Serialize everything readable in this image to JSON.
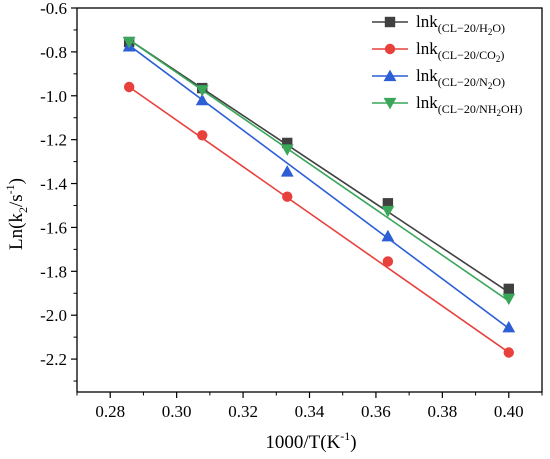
{
  "chart_data": {
    "type": "line",
    "xlabel": "1000/T(K",
    "xlabel_sup": "-1",
    "xlabel_tail": ")",
    "ylabel": "Ln(k",
    "ylabel_sub": "2",
    "ylabel_mid": "/s",
    "ylabel_sup": "-1",
    "ylabel_tail": ")",
    "xlim": [
      0.27,
      0.41
    ],
    "ylim": [
      -2.35,
      -0.6
    ],
    "x_ticks": [
      0.28,
      0.3,
      0.32,
      0.34,
      0.36,
      0.38,
      0.4
    ],
    "x_tick_labels": [
      "0.28",
      "0.30",
      "0.32",
      "0.34",
      "0.36",
      "0.38",
      "0.40"
    ],
    "y_ticks": [
      -0.6,
      -0.8,
      -1.0,
      -1.2,
      -1.4,
      -1.6,
      -1.8,
      -2.0,
      -2.2
    ],
    "y_tick_labels": [
      "-0.6",
      "-0.8",
      "-1.0",
      "-1.2",
      "-1.4",
      "-1.6",
      "-1.8",
      "-2.0",
      "-2.2"
    ],
    "grid": false,
    "legend_position": "top-right",
    "series": [
      {
        "name": "lnk",
        "name_sub": "(CL−20/H2O)",
        "name_sub_parts": [
          "(CL−20/H",
          "2",
          "O)"
        ],
        "color": "#404040",
        "marker": "square",
        "x": [
          0.2857,
          0.3077,
          0.3333,
          0.3636,
          0.4
        ],
        "y": [
          -0.755,
          -0.965,
          -1.215,
          -1.49,
          -1.88
        ],
        "fit": [
          -0.745,
          -1.895
        ]
      },
      {
        "name": "lnk",
        "name_sub": "(CL−20/CO2)",
        "name_sub_parts": [
          "(CL−20/CO",
          "2",
          ")"
        ],
        "color": "#e8413c",
        "marker": "circle",
        "x": [
          0.2857,
          0.3077,
          0.3333,
          0.3636,
          0.4
        ],
        "y": [
          -0.96,
          -1.18,
          -1.46,
          -1.755,
          -2.17
        ],
        "fit": [
          -0.96,
          -2.17
        ]
      },
      {
        "name": "lnk",
        "name_sub": "(CL−20/N2O)",
        "name_sub_parts": [
          "(CL−20/N",
          "2",
          "O)"
        ],
        "color": "#2c5fd6",
        "marker": "triangle-up",
        "x": [
          0.2857,
          0.3077,
          0.3333,
          0.3636,
          0.4
        ],
        "y": [
          -0.775,
          -1.02,
          -1.345,
          -1.64,
          -2.055
        ],
        "fit": [
          -0.77,
          -2.06
        ]
      },
      {
        "name": "lnk",
        "name_sub": "(CL−20/NH2OH)",
        "name_sub_parts": [
          "(CL−20/NH",
          "2",
          "OH)"
        ],
        "color": "#3aa65a",
        "marker": "triangle-down",
        "x": [
          0.2857,
          0.3077,
          0.3333,
          0.3636,
          0.4
        ],
        "y": [
          -0.755,
          -0.975,
          -1.245,
          -1.525,
          -1.925
        ],
        "fit": [
          -0.745,
          -1.935
        ]
      }
    ]
  }
}
